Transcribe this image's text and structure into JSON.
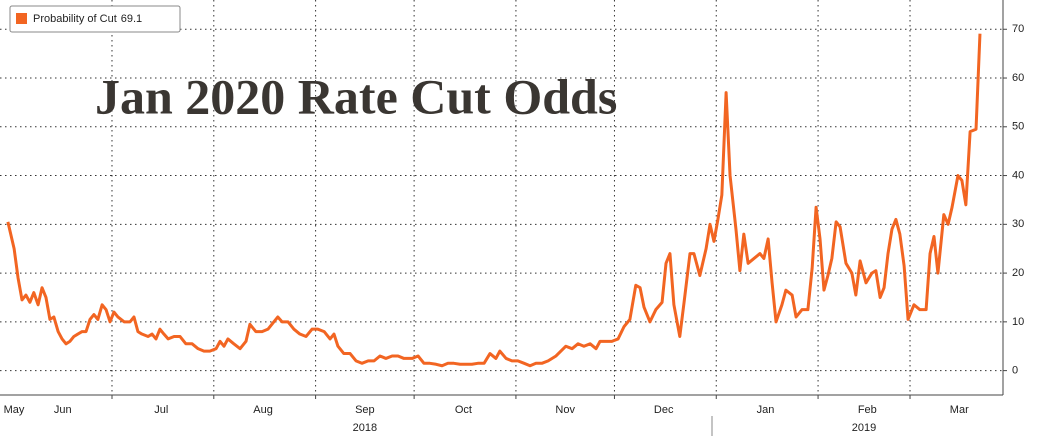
{
  "chart_data": {
    "type": "line",
    "title": "Jan 2020 Rate Cut Odds",
    "x": [
      -31.7,
      -29.8,
      -28.6,
      -27.4,
      -26.2,
      -25.0,
      -23.8,
      -22.5,
      -21.3,
      -20.1,
      -18.9,
      -17.7,
      -16.4,
      -15.2,
      -14.0,
      -12.8,
      -11.6,
      -10.4,
      -9.1,
      -7.9,
      -6.7,
      -5.5,
      -4.3,
      -3.0,
      -1.8,
      -0.6,
      0.6,
      1.8,
      3.7,
      5.5,
      6.7,
      7.9,
      9.1,
      11.0,
      12.2,
      13.4,
      14.6,
      15.8,
      17.1,
      18.9,
      20.7,
      22.5,
      24.4,
      26.2,
      28.0,
      29.8,
      31.7,
      32.9,
      34.1,
      35.3,
      37.1,
      39.0,
      40.8,
      42.0,
      43.8,
      45.7,
      47.5,
      49.3,
      50.5,
      51.8,
      53.6,
      55.4,
      57.2,
      59.1,
      60.9,
      62.7,
      64.6,
      66.4,
      67.6,
      68.8,
      70.6,
      72.5,
      74.3,
      76.1,
      78.0,
      79.8,
      81.6,
      83.4,
      85.3,
      87.1,
      88.9,
      91.4,
      93.2,
      95.0,
      96.8,
      98.7,
      100.5,
      102.3,
      104.1,
      106.0,
      107.8,
      109.6,
      111.4,
      113.3,
      115.1,
      116.9,
      118.1,
      120.0,
      121.8,
      123.6,
      125.5,
      127.3,
      129.1,
      130.9,
      132.8,
      135.2,
      138.2,
      140.1,
      141.9,
      143.7,
      145.6,
      147.4,
      148.6,
      150.4,
      152.2,
      154.1,
      155.9,
      157.7,
      159.5,
      160.8,
      162.0,
      163.8,
      165.6,
      167.5,
      168.7,
      169.9,
      171.1,
      172.9,
      174.2,
      176.0,
      177.2,
      179.0,
      180.9,
      182.1,
      183.3,
      184.5,
      185.7,
      187.0,
      188.2,
      190.0,
      191.2,
      192.4,
      193.7,
      195.5,
      197.3,
      198.5,
      199.8,
      201.0,
      202.2,
      204.0,
      205.2,
      207.1,
      208.3,
      210.1,
      211.9,
      213.2,
      214.4,
      215.6,
      216.8,
      218.0,
      219.2,
      220.5,
      221.7,
      223.5,
      225.3,
      226.5,
      227.8,
      229.6,
      231.4,
      232.6,
      233.9,
      235.1,
      236.3,
      237.5,
      238.7,
      239.9,
      241.2,
      242.4,
      244.2,
      246.0,
      247.9,
      249.1,
      250.3,
      251.5,
      253.3,
      254.6,
      255.8,
      257.6,
      258.8,
      260.0,
      261.3,
      263.1,
      264.3
    ],
    "series": [
      {
        "name": "Probability of Cut",
        "color": "#f26522",
        "values": [
          30.5,
          25,
          19,
          14.5,
          15.5,
          14,
          16,
          13.5,
          17,
          15,
          10.5,
          11,
          8,
          6.5,
          5.5,
          6,
          7,
          7.5,
          8,
          8,
          10.5,
          11.5,
          10.5,
          13.5,
          12.5,
          10,
          12,
          11,
          10,
          10,
          11,
          8,
          7.5,
          7,
          7.5,
          6.5,
          8.5,
          7.5,
          6.5,
          7,
          7,
          5.5,
          5.5,
          4.5,
          4,
          4,
          4.5,
          6,
          5,
          6.5,
          5.5,
          4.5,
          6,
          9.5,
          8,
          8,
          8.5,
          10,
          11,
          10,
          10,
          8.5,
          7.5,
          7,
          8.5,
          8.5,
          8,
          6.5,
          7.5,
          5,
          3.5,
          3.5,
          2,
          1.5,
          2,
          2,
          3,
          2.5,
          3,
          3,
          2.5,
          2.5,
          3,
          1.5,
          1.5,
          1.3,
          1,
          1.5,
          1.5,
          1.3,
          1.3,
          1.3,
          1.5,
          1.5,
          3.5,
          2.5,
          4,
          2.5,
          2,
          2,
          1.5,
          1,
          1.5,
          1.5,
          2,
          3,
          5,
          4.5,
          5.5,
          5,
          5.5,
          4.5,
          6,
          6,
          6,
          6.5,
          9,
          10.5,
          17.5,
          17,
          13,
          10,
          12.5,
          14,
          22,
          24,
          13.5,
          7,
          14,
          24,
          24,
          19.5,
          25,
          30,
          26.5,
          31,
          36,
          57,
          40,
          29,
          20.5,
          28,
          22,
          23,
          24,
          23,
          27,
          18,
          10,
          13.5,
          16.5,
          15.5,
          11,
          12.5,
          12.5,
          21,
          33.5,
          27,
          16.5,
          19.5,
          23,
          30.5,
          29.5,
          22,
          20,
          15.5,
          22.5,
          18,
          20,
          20.5,
          15,
          17,
          24,
          29,
          31,
          28,
          21.5,
          10.5,
          13.5,
          12.5,
          12.5,
          24,
          27.5,
          20,
          32,
          30,
          33.5,
          40,
          39,
          34,
          49,
          49.5,
          69.1
        ]
      }
    ],
    "xlim": [
      -34.1,
      270.4
    ],
    "xticks": [
      {
        "value": -61,
        "label": "May"
      },
      {
        "value": -30,
        "label": "Jun"
      },
      {
        "value": 0,
        "label": "Jul"
      },
      {
        "value": 31,
        "label": "Aug"
      },
      {
        "value": 62,
        "label": "Sep"
      },
      {
        "value": 92,
        "label": "Oct"
      },
      {
        "value": 123,
        "label": "Nov"
      },
      {
        "value": 153,
        "label": "Dec"
      },
      {
        "value": 184,
        "label": "Jan"
      },
      {
        "value": 215,
        "label": "Feb"
      },
      {
        "value": 243,
        "label": "Mar"
      }
    ],
    "year_labels": [
      {
        "value": 77,
        "label": "2018"
      },
      {
        "value": 229,
        "label": "2019"
      }
    ],
    "ylim": [
      -5,
      76
    ],
    "yticks": [
      0,
      10,
      20,
      30,
      40,
      50,
      60,
      70
    ],
    "grid": true,
    "legend": "top-left"
  }
}
